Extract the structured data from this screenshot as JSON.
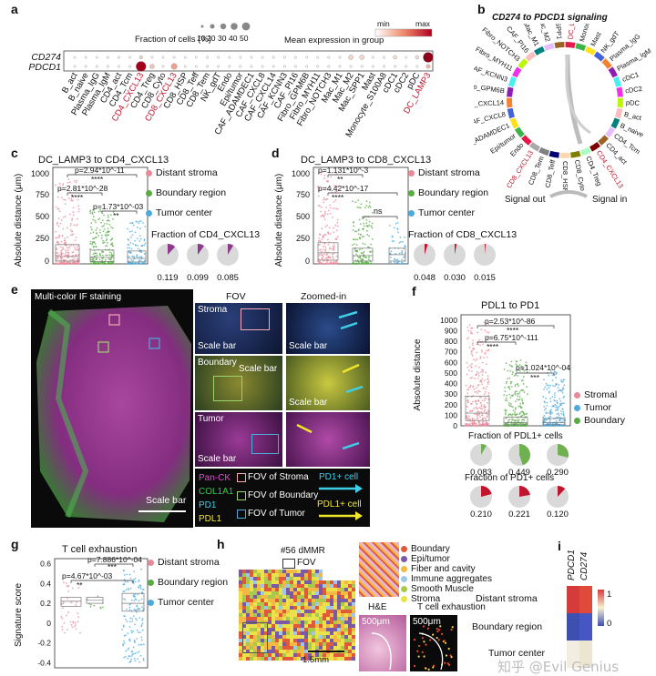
{
  "panel_labels": [
    "a",
    "b",
    "c",
    "d",
    "e",
    "f",
    "g",
    "h",
    "i"
  ],
  "panel_a": {
    "genes": [
      "CD274",
      "PDCD1"
    ],
    "size_legend_title": "Fraction of cells (%)",
    "size_legend_ticks": [
      "10",
      "20",
      "30",
      "40",
      "50"
    ],
    "color_legend_title": "Mean expression in group",
    "color_min": "min",
    "color_max": "max",
    "cell_types": [
      "B_act",
      "B_naive",
      "Plasma_IgG",
      "Plasma_IgM",
      "CD4_act",
      "CD4_Tcm",
      "CD4_CXCL13",
      "CD4_Treg",
      "CD8_Cyto",
      "CD8_CXCL13",
      "CD8_HSP",
      "CD8_Teff",
      "CD8_Tem",
      "NK_gdT",
      "Endo",
      "Epi/tumor",
      "CAF_ADAMDEC1",
      "CAF_CXCL8",
      "CAF_CXCL14",
      "CAF_KCNN3",
      "CAF_PI16",
      "Fibro_GPM6B",
      "Fibro_MYH11",
      "Fibro_NOTCH3",
      "Mac_M1",
      "Mac_M2",
      "Mac_SPP1",
      "Mast",
      "Monocyte_S100A8",
      "cDC1",
      "cDC2",
      "pDC",
      "DC_LAMP3"
    ],
    "highlight": [
      "CD4_CXCL13",
      "CD8_CXCL13",
      "DC_LAMP3"
    ]
  },
  "panel_b": {
    "title": "CD274 to PDCD1 signaling",
    "labels": [
      "DC_LAMP3",
      "Monocyte_S100A8",
      "Mast",
      "NK_gdT",
      "Plasma_IgG",
      "Plasma_IgM",
      "cDC1",
      "cDC2",
      "pDC",
      "B_act",
      "B_naive",
      "CD4_Tcm",
      "CD4_act",
      "CD4_CXCL13",
      "CD4_Treg",
      "CD8_Cyto",
      "CD8_HSP",
      "CD8_Teff",
      "CD8_Tem",
      "CD8_CXCL13",
      "Endo",
      "Epi/tumor",
      "CAF_ADAMDEC1",
      "CAF_CXCL8",
      "CAF_CXCL14",
      "Fibro_GPM6B",
      "CAF_KCNN3",
      "Fibro_MYH11",
      "Fibro_NOTCH3",
      "CAF_PI16",
      "Mac_M1",
      "Mac_M2",
      "Mac_SPP1"
    ],
    "signal_out": "Signal out",
    "signal_in": "Signal in"
  },
  "region_legend": {
    "distant": "Distant stroma",
    "boundary": "Boundary region",
    "tumor": "Tumor center",
    "colors": {
      "distant": "#e8899a",
      "boundary": "#5aab45",
      "tumor": "#4ea9dd"
    }
  },
  "panel_c": {
    "title": "DC_LAMP3 to CD4_CXCL13",
    "ylabel": "Absolute distance (μm)",
    "yticks": [
      "0",
      "250",
      "500",
      "750",
      "1000"
    ],
    "p_values": [
      "p=2.94*10^-11",
      "p=2.81*10^-28",
      "p=1.73*10^-03"
    ],
    "stars": [
      "****",
      "****",
      "**"
    ],
    "fraction_title": "Fraction of CD4_CXCL13",
    "fractions": [
      "0.119",
      "0.099",
      "0.085"
    ]
  },
  "panel_d": {
    "title": "DC_LAMP3 to CD8_CXCL13",
    "ylabel": "Absolute distance (μm)",
    "yticks": [
      "0",
      "250",
      "500",
      "750",
      "1000"
    ],
    "p_values": [
      "p=1.131*10^-3",
      "p=4.42*10^-17",
      "ns"
    ],
    "stars": [
      "**",
      "****"
    ],
    "fraction_title": "Fraction of CD8_CXCL13",
    "fractions": [
      "0.048",
      "0.030",
      "0.015"
    ]
  },
  "panel_e": {
    "title": "Multi-color IF staining",
    "fov_title": "FOV",
    "zoom_title": "Zoomed-in",
    "rows": [
      "Stroma",
      "Boundary",
      "Tumor"
    ],
    "scale_bar": "Scale bar",
    "legend_markers": [
      "Pan-CK",
      "COL1A1",
      "PD1",
      "PDL1"
    ],
    "legend_fov": [
      "FOV of Stroma",
      "FOV of Boundary",
      "FOV of Tumor"
    ],
    "legend_cells": [
      "PD1+ cell",
      "PDL1+ cell"
    ]
  },
  "panel_f": {
    "title": "PDL1 to PD1",
    "ylabel": "Absolute distance",
    "yticks": [
      "0",
      "100",
      "200",
      "300",
      "400",
      "500",
      "600",
      "700",
      "800",
      "900",
      "1000"
    ],
    "p_values": [
      "p=2.53*10^-86",
      "p=6.75*10^-111",
      "p=1.024*10^-04"
    ],
    "stars": [
      "****",
      "****",
      "***"
    ],
    "legend": [
      "Stromal",
      "Tumor",
      "Boundary"
    ],
    "fraction_pdl1_title": "Fraction of PDL1+ cells",
    "fractions_pdl1": [
      "0.083",
      "0.449",
      "0.290"
    ],
    "fraction_pd1_title": "Fraction of PD1+ cells",
    "fractions_pd1": [
      "0.210",
      "0.221",
      "0.120"
    ]
  },
  "panel_g": {
    "title": "T cell exhaustion",
    "ylabel": "Signature score",
    "yticks": [
      "-0.4",
      "-0.2",
      "0",
      "0.2",
      "0.4",
      "0.6"
    ],
    "p_values": [
      "p=7.886*10^-04",
      "p=4.67*10^-03"
    ],
    "stars": [
      "***",
      "**"
    ]
  },
  "panel_h": {
    "sample": "#56 dMMR",
    "fov": "FOV",
    "scale": "1.5mm",
    "he": "H&E",
    "exhaustion": "T cell exhaustion",
    "um": "500μm",
    "legend": [
      "Boundary",
      "Epi/tumor",
      "Fiber and cavity",
      "Immune aggregates",
      "Smooth Muscle",
      "Stroma"
    ],
    "legend_colors": [
      "#e05a3a",
      "#7a5aa8",
      "#f4b942",
      "#9ec8ea",
      "#a8c94c",
      "#e9e24a"
    ]
  },
  "panel_i": {
    "cols": [
      "PDCD1",
      "CD274"
    ],
    "rows": [
      "Distant stroma",
      "Boundary region",
      "Tumor center"
    ],
    "scale_top": "1",
    "scale_bottom": "0"
  },
  "watermark": "知乎 @Evil Genius"
}
